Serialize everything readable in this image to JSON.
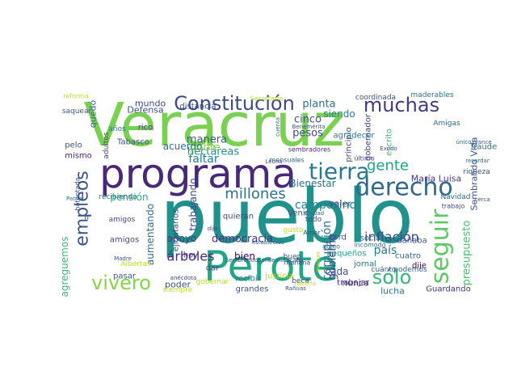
{
  "words": [
    {
      "text": "pueblo",
      "color": "#21918c"
    },
    {
      "text": "Veracruz",
      "color": "#7ad151"
    },
    {
      "text": "programa",
      "color": "#482878"
    },
    {
      "text": "Perote",
      "color": "#22a884"
    },
    {
      "text": "derecho",
      "color": "#31688e"
    },
    {
      "text": "Constitución",
      "color": "#3e4a89"
    },
    {
      "text": "muchas",
      "color": "#443983"
    },
    {
      "text": "tierra",
      "color": "#2a788e"
    },
    {
      "text": "seguir",
      "color": "#5ec962"
    },
    {
      "text": "empleos",
      "color": "#3b528b"
    },
    {
      "text": "vivero",
      "color": "#86d549"
    },
    {
      "text": "sólo",
      "color": "#35b779"
    },
    {
      "text": "millones",
      "color": "#2c728e"
    },
    {
      "text": "inflación",
      "color": "#3e4989"
    },
    {
      "text": "gente",
      "color": "#20a386"
    },
    {
      "text": "presupuesto",
      "color": "#4ac16d"
    },
    {
      "text": "campesino",
      "color": "#26828e"
    },
    {
      "text": "árboles",
      "color": "#472d7b"
    },
    {
      "text": "corrupción",
      "color": "#2c728e"
    },
    {
      "text": "hectáreas",
      "color": "#21918c"
    },
    {
      "text": "Sembrando Vida",
      "color": "#3b528b"
    },
    {
      "text": "gobierno",
      "color": "#3f4788"
    },
    {
      "text": "planta",
      "color": "#2f6c8e"
    },
    {
      "text": "cinco",
      "color": "#3b528b"
    },
    {
      "text": "pesos",
      "color": "#3e4989"
    },
    {
      "text": "manera",
      "color": "#355f8d"
    },
    {
      "text": "faltar",
      "color": "#287c8e"
    },
    {
      "text": "pobre",
      "color": "#8fd744"
    },
    {
      "text": "acuerdo",
      "color": "#2d708e"
    },
    {
      "text": "Bienestar",
      "color": "#2c728e"
    },
    {
      "text": "apoyo",
      "color": "#443a83"
    },
    {
      "text": "democracia",
      "color": "#46327e"
    },
    {
      "text": "bien",
      "color": "#440154"
    },
    {
      "text": "quedó",
      "color": "#31688e"
    },
    {
      "text": "Defensa",
      "color": "#3b528b"
    },
    {
      "text": "mundo",
      "color": "#414487"
    },
    {
      "text": "siendo",
      "color": "#287d8e"
    },
    {
      "text": "pensión",
      "color": "#2ab07f"
    },
    {
      "text": "trabajando",
      "color": "#3f4889"
    },
    {
      "text": "aumentando",
      "color": "#2d708e"
    },
    {
      "text": "agreguemos",
      "color": "#38b977"
    },
    {
      "text": "valer",
      "color": "#3b528b"
    },
    {
      "text": "cada",
      "color": "#3b528b"
    },
    {
      "text": "país",
      "color": "#29798e"
    },
    {
      "text": "nunca",
      "color": "#46307e"
    },
    {
      "text": "lucha",
      "color": "#2c728e"
    },
    {
      "text": "poder",
      "color": "#3b528b"
    },
    {
      "text": "ir",
      "color": "#355f8d"
    },
    {
      "text": "María Luisa",
      "color": "#443983"
    },
    {
      "text": "Tabasco",
      "color": "#3b528b"
    },
    {
      "text": "principio",
      "color": "#3e4a89"
    },
    {
      "text": "escrito",
      "color": "#35b779"
    },
    {
      "text": "gobernador",
      "color": "#433e85"
    },
    {
      "text": "agradecer",
      "color": "#2a788e"
    },
    {
      "text": "ejidatarios",
      "color": "#414487"
    },
    {
      "text": "Guardando",
      "color": "#46327e"
    },
    {
      "text": "Ford",
      "color": "#3b528b"
    },
    {
      "text": "jornal",
      "color": "#2c728e"
    },
    {
      "text": "social",
      "color": "#31688e"
    },
    {
      "text": "dañaba",
      "color": "#3b528b"
    },
    {
      "text": "cuatro",
      "color": "#355f8d"
    },
    {
      "text": "dije",
      "color": "#440154"
    },
    {
      "text": "trabajar",
      "color": "#46307e"
    },
    {
      "text": "grandes",
      "color": "#3b528b"
    },
    {
      "text": "pequeños",
      "color": "#1fa187"
    },
    {
      "text": "justicia",
      "color": "#b5de2b"
    },
    {
      "text": "recibir",
      "color": "#2a788e"
    },
    {
      "text": "fraude",
      "color": "#2c728e"
    },
    {
      "text": "riqueza",
      "color": "#3b528b"
    },
    {
      "text": "pasar",
      "color": "#355f8d"
    },
    {
      "text": "amigos",
      "color": "#3f4788"
    },
    {
      "text": "Venir",
      "color": "#3b528b"
    },
    {
      "text": "dar",
      "color": "#414487"
    },
    {
      "text": "hoy",
      "color": "#46327e"
    },
    {
      "text": "quieran",
      "color": "#3e4989"
    },
    {
      "text": "Navidad",
      "color": "#31688e"
    },
    {
      "text": "distancia",
      "color": "#3b528b"
    },
    {
      "text": "rico",
      "color": "#414487"
    },
    {
      "text": "años",
      "color": "#2a788e"
    },
    {
      "text": "pelo",
      "color": "#3b528b"
    },
    {
      "text": "mismo",
      "color": "#482475"
    },
    {
      "text": "coordinada",
      "color": "#3b528b"
    },
    {
      "text": "maderables",
      "color": "#2c728e"
    },
    {
      "text": "Amigas",
      "color": "#31688e"
    },
    {
      "text": "reforma",
      "color": "#bddf26"
    },
    {
      "text": "Secretaría",
      "color": "#b5de2b"
    },
    {
      "text": "saquear",
      "color": "#3b528b"
    },
    {
      "text": "hotentada",
      "color": "#3b528b"
    },
    {
      "text": "Patria",
      "color": "#2c728e"
    },
    {
      "text": "adultos",
      "color": "#3e4989"
    },
    {
      "text": "amigos",
      "color": "#3f4788"
    },
    {
      "text": "recibiendo",
      "color": "#31688e"
    },
    {
      "text": "Albertas",
      "color": "#b5de2b"
    },
    {
      "text": "siempre",
      "color": "#bddf26"
    },
    {
      "text": "gobernar",
      "color": "#b5de2b"
    },
    {
      "text": "mañana",
      "color": "#3e4989"
    },
    {
      "text": "buen",
      "color": "#3b528b"
    },
    {
      "text": "beca",
      "color": "#414487"
    },
    {
      "text": "abajo",
      "color": "#31688e"
    },
    {
      "text": "incomodo",
      "color": "#2c728e"
    },
    {
      "text": "todo",
      "color": "#3b528b"
    },
    {
      "text": "gusto",
      "color": "#c2df23"
    },
    {
      "text": "Amor",
      "color": "#3b528b"
    },
    {
      "text": "podemos",
      "color": "#31688e"
    },
    {
      "text": "cuánto",
      "color": "#3b528b"
    },
    {
      "text": "mensuales",
      "color": "#31688e"
    },
    {
      "text": "sembradores",
      "color": "#482878"
    },
    {
      "text": "último",
      "color": "#414487"
    },
    {
      "text": "Benemérita",
      "color": "#3b528b"
    },
    {
      "text": "cuenta",
      "color": "#2c728e"
    },
    {
      "text": "Leona",
      "color": "#3b528b"
    },
    {
      "text": "historia",
      "color": "#b5de2b"
    },
    {
      "text": "avance",
      "color": "#3b528b"
    },
    {
      "text": "recordar",
      "color": "#31688e"
    },
    {
      "text": "cerca",
      "color": "#3b528b"
    },
    {
      "text": "trabajo",
      "color": "#414487"
    },
    {
      "text": "Madre",
      "color": "#3b528b"
    },
    {
      "text": "anécdota",
      "color": "#3e4989"
    },
    {
      "text": "gracias",
      "color": "#b5de2b"
    },
    {
      "text": "Sembrando",
      "color": "#3b528b"
    },
    {
      "text": "Ciudad",
      "color": "#31688e"
    },
    {
      "text": "acaba",
      "color": "#3b528b"
    },
    {
      "text": "pandemia",
      "color": "#3b528b"
    },
    {
      "text": "establecido",
      "color": "#31688e"
    },
    {
      "text": "Rañuas",
      "color": "#3b528b"
    },
    {
      "text": "dijo",
      "color": "#414487"
    },
    {
      "text": "Exodo",
      "color": "#3b528b"
    },
    {
      "text": "único",
      "color": "#31688e"
    }
  ]
}
